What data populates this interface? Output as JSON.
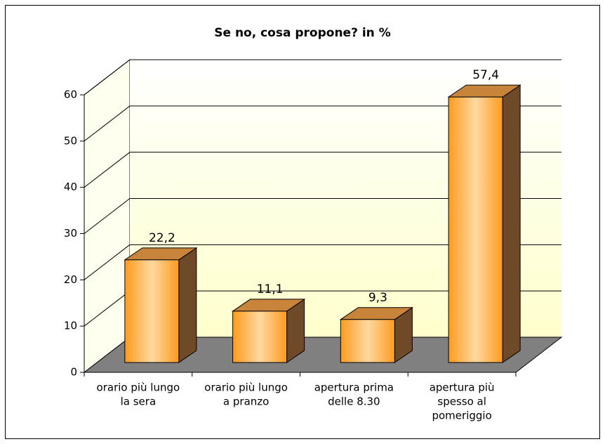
{
  "chart_data": {
    "type": "bar3d",
    "title": "Se no, cosa propone? in %",
    "categories": [
      [
        "orario più lungo",
        "la sera"
      ],
      [
        "orario più lungo",
        "a pranzo"
      ],
      [
        "apertura prima",
        "delle 8.30"
      ],
      [
        "apertura più",
        "spesso al",
        "pomeriggio"
      ]
    ],
    "values": [
      22.2,
      11.1,
      9.3,
      57.4
    ],
    "value_labels": [
      "22,2",
      "11,1",
      "9,3",
      "57,4"
    ],
    "color": "#ff9a1e",
    "ylim": [
      0,
      60
    ],
    "yticks": [
      0,
      10,
      20,
      30,
      40,
      50,
      60
    ],
    "grid": true
  }
}
